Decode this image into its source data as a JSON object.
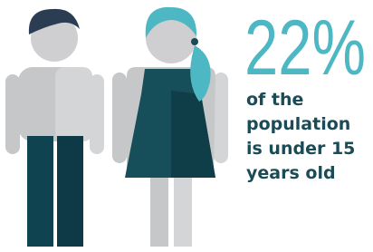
{
  "stat": "22%",
  "caption": [
    "of the",
    "population",
    "is under 15",
    "years old"
  ]
}
